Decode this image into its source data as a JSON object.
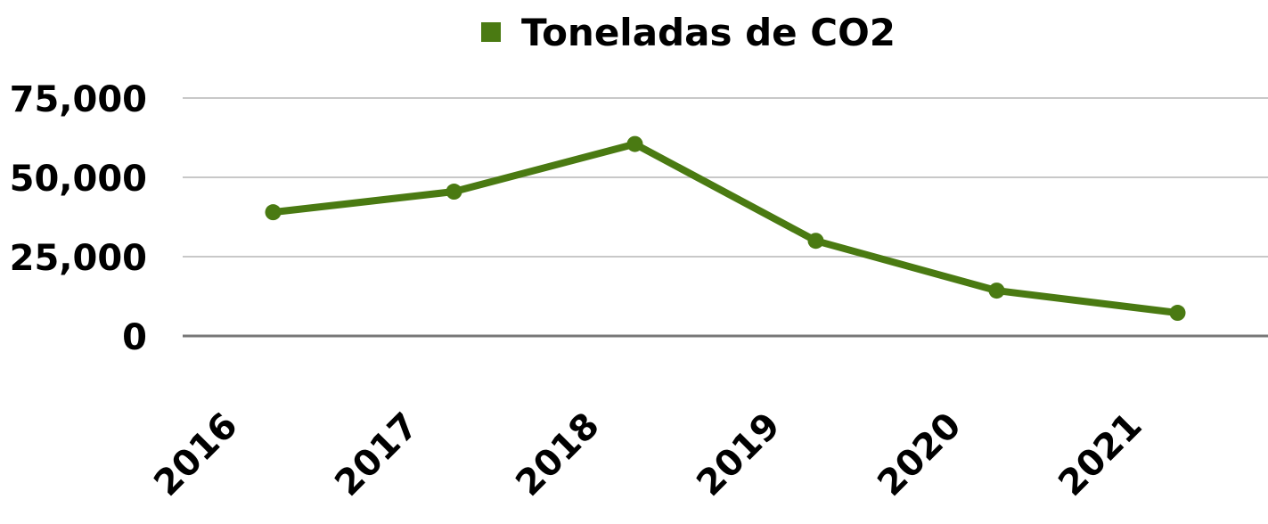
{
  "chart_data": {
    "type": "line",
    "categories": [
      "2016",
      "2017",
      "2018",
      "2019",
      "2020",
      "2021"
    ],
    "series": [
      {
        "name": "Toneladas de CO2",
        "color": "#4a7a12",
        "values": [
          39000,
          45500,
          60500,
          30000,
          14300,
          7300
        ]
      }
    ],
    "ylim": [
      0,
      75000
    ],
    "yticks": [
      0,
      {
        "value": 25000,
        "label": "25,000"
      },
      {
        "value": 50000,
        "label": "50,000"
      },
      {
        "value": 75000,
        "label": "75,000"
      }
    ],
    "grid": true,
    "legend": "top"
  }
}
